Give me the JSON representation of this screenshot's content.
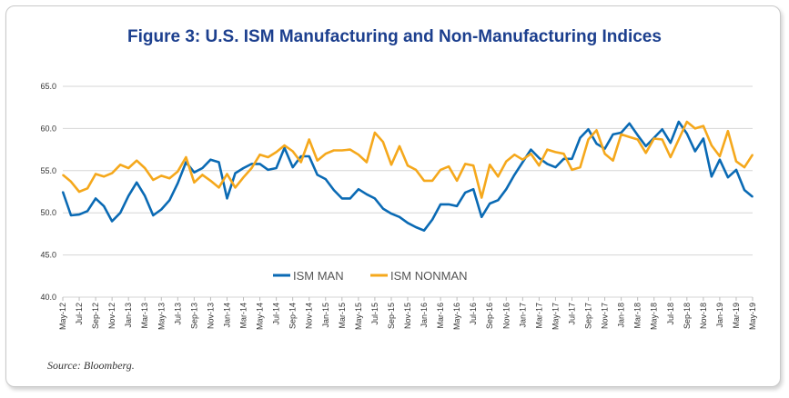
{
  "chart_data": {
    "type": "line",
    "title": "Figure 3:  U.S. ISM Manufacturing and Non-Manufacturing Indices",
    "xlabel": "",
    "ylabel": "",
    "ylim": [
      40,
      65
    ],
    "yticks": [
      "40.0",
      "45.0",
      "50.0",
      "55.0",
      "60.0",
      "65.0"
    ],
    "grid": true,
    "legend_position": "bottom-center",
    "categories": [
      "May-12",
      "Jun-12",
      "Jul-12",
      "Aug-12",
      "Sep-12",
      "Oct-12",
      "Nov-12",
      "Dec-12",
      "Jan-13",
      "Feb-13",
      "Mar-13",
      "Apr-13",
      "May-13",
      "Jun-13",
      "Jul-13",
      "Aug-13",
      "Sep-13",
      "Oct-13",
      "Nov-13",
      "Dec-13",
      "Jan-14",
      "Feb-14",
      "Mar-14",
      "Apr-14",
      "May-14",
      "Jun-14",
      "Jul-14",
      "Aug-14",
      "Sep-14",
      "Oct-14",
      "Nov-14",
      "Dec-14",
      "Jan-15",
      "Feb-15",
      "Mar-15",
      "Apr-15",
      "May-15",
      "Jun-15",
      "Jul-15",
      "Aug-15",
      "Sep-15",
      "Oct-15",
      "Nov-15",
      "Dec-15",
      "Jan-16",
      "Feb-16",
      "Mar-16",
      "Apr-16",
      "May-16",
      "Jun-16",
      "Jul-16",
      "Aug-16",
      "Sep-16",
      "Oct-16",
      "Nov-16",
      "Dec-16",
      "Jan-17",
      "Feb-17",
      "Mar-17",
      "Apr-17",
      "May-17",
      "Jun-17",
      "Jul-17",
      "Aug-17",
      "Sep-17",
      "Oct-17",
      "Nov-17",
      "Dec-17",
      "Jan-18",
      "Feb-18",
      "Mar-18",
      "Apr-18",
      "May-18",
      "Jun-18",
      "Jul-18",
      "Aug-18",
      "Sep-18",
      "Oct-18",
      "Nov-18",
      "Dec-18",
      "Jan-19",
      "Feb-19",
      "Mar-19",
      "Apr-19",
      "May-19"
    ],
    "series": [
      {
        "name": "ISM MAN",
        "color": "#0a6ab4",
        "values": [
          52.5,
          49.7,
          49.8,
          50.2,
          51.7,
          50.8,
          49.0,
          50.0,
          52.0,
          53.6,
          52.0,
          49.7,
          50.4,
          51.5,
          53.5,
          56.0,
          54.8,
          55.3,
          56.3,
          56.0,
          51.7,
          54.7,
          55.3,
          55.8,
          55.8,
          55.1,
          55.3,
          57.7,
          55.4,
          56.7,
          56.7,
          54.5,
          54.0,
          52.7,
          51.7,
          51.7,
          52.8,
          52.2,
          51.7,
          50.5,
          49.9,
          49.5,
          48.8,
          48.3,
          47.9,
          49.2,
          51.0,
          51.0,
          50.8,
          52.4,
          52.8,
          49.5,
          51.1,
          51.5,
          52.8,
          54.5,
          56.0,
          57.5,
          56.5,
          55.8,
          55.4,
          56.4,
          56.4,
          58.9,
          59.9,
          58.2,
          57.6,
          59.3,
          59.5,
          60.6,
          59.2,
          57.9,
          58.9,
          59.9,
          58.3,
          60.8,
          59.4,
          57.3,
          58.8,
          54.3,
          56.3,
          54.2,
          55.1,
          52.7,
          51.9
        ]
      },
      {
        "name": "ISM NONMAN",
        "color": "#f5a81c",
        "values": [
          54.5,
          53.7,
          52.5,
          52.9,
          54.6,
          54.3,
          54.7,
          55.7,
          55.3,
          56.2,
          55.3,
          53.9,
          54.4,
          54.1,
          54.9,
          56.6,
          53.6,
          54.5,
          53.8,
          53.0,
          54.6,
          53.0,
          54.2,
          55.3,
          56.9,
          56.6,
          57.2,
          58.0,
          57.3,
          56.0,
          58.7,
          56.2,
          57.0,
          57.4,
          57.4,
          57.5,
          56.9,
          56.0,
          59.5,
          58.4,
          55.7,
          57.9,
          55.6,
          55.1,
          53.8,
          53.8,
          55.1,
          55.5,
          53.8,
          55.8,
          55.6,
          51.8,
          55.7,
          54.3,
          56.1,
          56.9,
          56.3,
          57.0,
          55.6,
          57.5,
          57.2,
          57.0,
          55.1,
          55.4,
          58.7,
          59.8,
          57.0,
          56.2,
          59.3,
          59.0,
          58.7,
          57.1,
          58.8,
          58.7,
          56.6,
          58.7,
          60.8,
          60.0,
          60.3,
          58.0,
          56.7,
          59.7,
          56.1,
          55.4,
          56.9
        ]
      }
    ]
  },
  "source": "Source: Bloomberg."
}
